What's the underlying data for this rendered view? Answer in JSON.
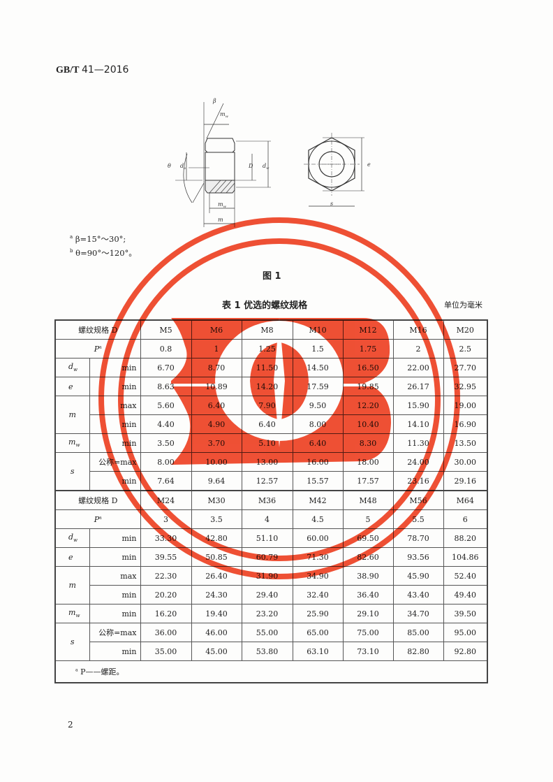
{
  "header": {
    "std_code": "GB/T",
    "std_number": "41—2016"
  },
  "figure": {
    "labels": {
      "beta": "β",
      "beta_sup": "a",
      "theta": "θ",
      "theta_sup": "b",
      "mw": "m",
      "mw_sub": "w",
      "m": "m",
      "da": "d",
      "da_sub": "a",
      "D": "D",
      "dw": "d",
      "dw_sub": "w",
      "e": "e",
      "s": "s"
    },
    "notes": [
      {
        "mark": "a",
        "text": "β=15°～30°;"
      },
      {
        "mark": "b",
        "text": "θ=90°～120°。"
      }
    ],
    "caption": "图 1"
  },
  "table": {
    "title": "表 1   优选的螺纹规格",
    "unit": "单位为毫米",
    "row_labels": {
      "spec": "螺纹规格 D",
      "P": "P",
      "P_sup": "a",
      "dw": "d",
      "dw_sub": "w",
      "e": "e",
      "m": "m",
      "mw": "m",
      "mw_sub": "w",
      "s": "s",
      "min": "min",
      "max": "max",
      "nominal_max": "公称=max"
    },
    "blocks": [
      {
        "spec": [
          "M5",
          "M6",
          "M8",
          "M10",
          "M12",
          "M16",
          "M20"
        ],
        "P": [
          "0.8",
          "1",
          "1.25",
          "1.5",
          "1.75",
          "2",
          "2.5"
        ],
        "dw_min": [
          "6.70",
          "8.70",
          "11.50",
          "14.50",
          "16.50",
          "22.00",
          "27.70"
        ],
        "e_min": [
          "8.63",
          "10.89",
          "14.20",
          "17.59",
          "19.85",
          "26.17",
          "32.95"
        ],
        "m_max": [
          "5.60",
          "6.40",
          "7.90",
          "9.50",
          "12.20",
          "15.90",
          "19.00"
        ],
        "m_min": [
          "4.40",
          "4.90",
          "6.40",
          "8.00",
          "10.40",
          "14.10",
          "16.90"
        ],
        "mw_min": [
          "3.50",
          "3.70",
          "5.10",
          "6.40",
          "8.30",
          "11.30",
          "13.50"
        ],
        "s_max": [
          "8.00",
          "10.00",
          "13.00",
          "16.00",
          "18.00",
          "24.00",
          "30.00"
        ],
        "s_min": [
          "7.64",
          "9.64",
          "12.57",
          "15.57",
          "17.57",
          "23.16",
          "29.16"
        ]
      },
      {
        "spec": [
          "M24",
          "M30",
          "M36",
          "M42",
          "M48",
          "M56",
          "M64"
        ],
        "P": [
          "3",
          "3.5",
          "4",
          "4.5",
          "5",
          "5.5",
          "6"
        ],
        "dw_min": [
          "33.30",
          "42.80",
          "51.10",
          "60.00",
          "69.50",
          "78.70",
          "88.20"
        ],
        "e_min": [
          "39.55",
          "50.85",
          "60.79",
          "71.30",
          "82.60",
          "93.56",
          "104.86"
        ],
        "m_max": [
          "22.30",
          "26.40",
          "31.90",
          "34.90",
          "38.90",
          "45.90",
          "52.40"
        ],
        "m_min": [
          "20.20",
          "24.30",
          "29.40",
          "32.40",
          "36.40",
          "43.40",
          "49.40"
        ],
        "mw_min": [
          "16.20",
          "19.40",
          "23.20",
          "25.90",
          "29.10",
          "34.70",
          "39.50"
        ],
        "s_max": [
          "36.00",
          "46.00",
          "55.00",
          "65.00",
          "75.00",
          "85.00",
          "95.00"
        ],
        "s_min": [
          "35.00",
          "45.00",
          "53.80",
          "63.10",
          "73.10",
          "82.80",
          "92.80"
        ]
      }
    ],
    "footnote": {
      "mark": "a",
      "text": "P——螺距。"
    }
  },
  "page_number": "2",
  "stamp": {
    "color": "#f0472a"
  }
}
